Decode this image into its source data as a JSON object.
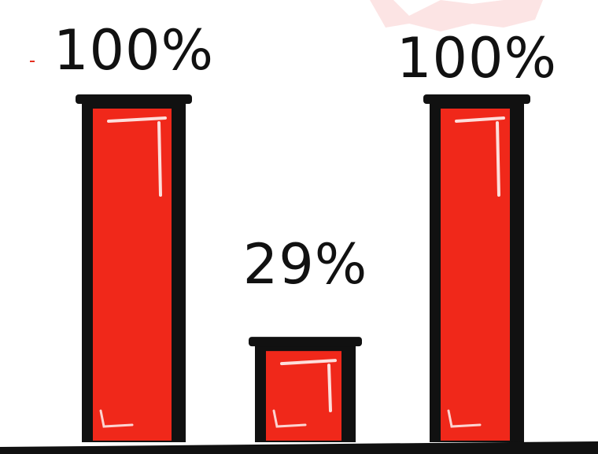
{
  "chart_data": {
    "type": "bar",
    "categories": [
      "",
      "",
      ""
    ],
    "values": [
      100,
      29,
      100
    ],
    "value_labels": [
      "100%",
      "29%",
      "100%"
    ],
    "ylim": [
      0,
      100
    ],
    "title": "",
    "xlabel": "",
    "ylabel": "",
    "grid": false,
    "legend": "none"
  },
  "colors": {
    "bar_fill": "#f0281a",
    "bar_outline": "#111111",
    "highlight": "#ffffff",
    "background": "#ffffff",
    "faint_smudge": "#fbd9d9"
  }
}
